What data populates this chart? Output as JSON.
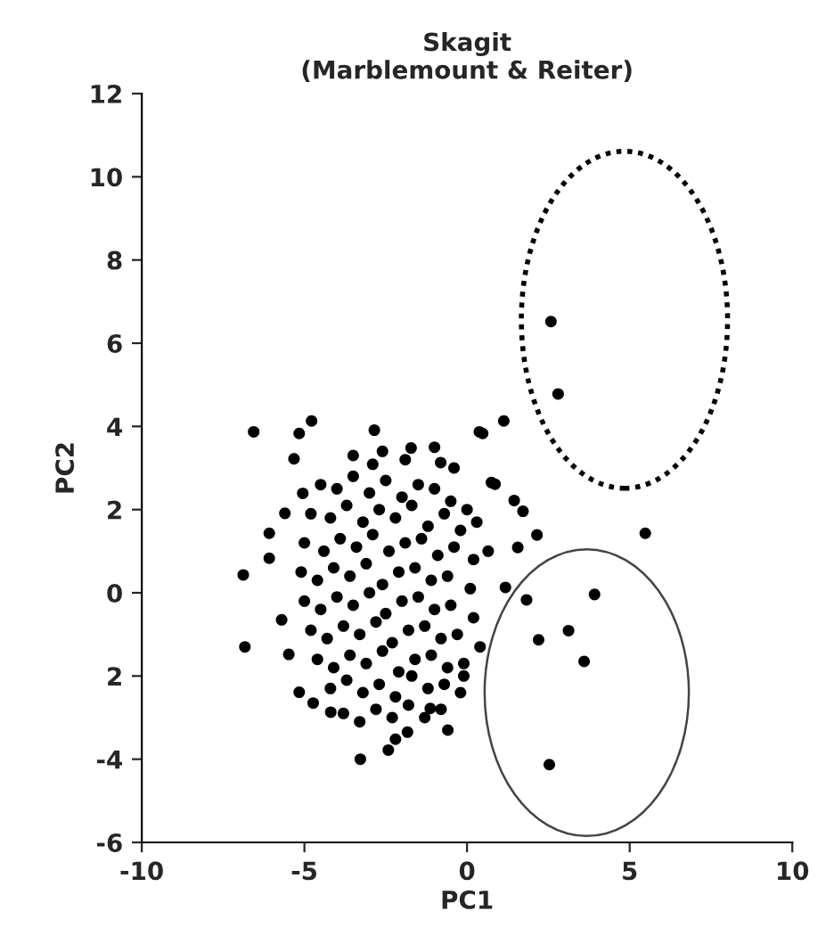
{
  "chart_data": {
    "type": "scatter",
    "title": "Skagit\n(Marblemount & Reiter)",
    "xlabel": "PC1",
    "ylabel": "PC2",
    "color": "#000000",
    "marker": "circle",
    "grid": false,
    "legend": false,
    "xlim": [
      -10,
      10
    ],
    "xticks": [
      -10,
      -5,
      0,
      5,
      10
    ],
    "ylim": [
      -6,
      12
    ],
    "yticks": [
      -6,
      -4,
      {
        "value": -2,
        "label": "2"
      },
      0,
      2,
      4,
      6,
      8,
      10,
      12
    ],
    "x": [
      2.58,
      2.8,
      1.13,
      0.38,
      5.48,
      3.92,
      3.12,
      2.2,
      3.6,
      2.53,
      1.56,
      2.15,
      1.45,
      1.72,
      0.86,
      0.65,
      1.83,
      1.18,
      -6.56,
      -4.78,
      -5.16,
      -2.85,
      -1.72,
      -5.32,
      -2.9,
      -0.81,
      -6.88,
      -6.83,
      -6.08,
      -6.08,
      -5.6,
      -5.05,
      -5.7,
      -5.48,
      -5.16,
      -4.73,
      -4.19,
      -3.28,
      -2.42,
      -2.2,
      -1.83,
      -0.59,
      -1.13,
      0.75,
      0.48,
      -0.1,
      -4.5,
      -4.0,
      -3.5,
      -3.0,
      -2.5,
      -2.0,
      -1.5,
      -1.0,
      -0.5,
      0.0,
      -4.8,
      -4.2,
      -3.7,
      -3.2,
      -2.7,
      -2.2,
      -1.7,
      -1.2,
      -0.7,
      -0.2,
      0.3,
      -5.0,
      -4.4,
      -3.9,
      -3.4,
      -2.9,
      -2.4,
      -1.9,
      -1.4,
      -0.9,
      -0.4,
      0.2,
      -5.1,
      -4.6,
      -4.1,
      -3.6,
      -3.1,
      -2.6,
      -2.1,
      -1.6,
      -1.1,
      -0.6,
      0.1,
      -5.0,
      -4.5,
      -4.0,
      -3.5,
      -3.0,
      -2.5,
      -2.0,
      -1.5,
      -1.0,
      -0.5,
      0.2,
      -4.8,
      -4.3,
      -3.8,
      -3.3,
      -2.8,
      -2.3,
      -1.8,
      -1.3,
      -0.8,
      -0.3,
      0.4,
      -4.6,
      -4.1,
      -3.6,
      -3.1,
      -2.6,
      -2.1,
      -1.6,
      -1.1,
      -0.6,
      -0.1,
      -4.2,
      -3.7,
      -3.2,
      -2.7,
      -2.2,
      -1.7,
      -1.2,
      -0.7,
      -0.2,
      -3.8,
      -3.3,
      -2.8,
      -2.3,
      -1.8,
      -1.3,
      -0.8,
      -3.5,
      -2.6,
      -1.9,
      -1.0,
      -0.4
    ],
    "values": [
      6.52,
      4.78,
      4.13,
      3.87,
      1.43,
      -0.04,
      -0.91,
      -1.13,
      -1.65,
      -4.13,
      1.09,
      1.39,
      2.22,
      1.96,
      2.61,
      1.0,
      -0.17,
      0.13,
      3.87,
      4.13,
      3.83,
      3.91,
      3.48,
      3.22,
      3.09,
      3.13,
      0.43,
      -1.3,
      1.43,
      0.83,
      1.91,
      2.39,
      -0.65,
      -1.48,
      -2.39,
      -2.65,
      -2.87,
      -4.0,
      -3.78,
      -3.52,
      -3.35,
      -3.3,
      -2.78,
      2.65,
      3.83,
      -2.0,
      2.6,
      2.5,
      2.8,
      2.4,
      2.7,
      2.3,
      2.6,
      2.5,
      2.2,
      2.0,
      1.9,
      1.8,
      2.1,
      1.7,
      2.0,
      1.8,
      2.1,
      1.6,
      1.9,
      1.5,
      1.7,
      1.2,
      1.0,
      1.3,
      1.1,
      1.4,
      1.0,
      1.2,
      1.3,
      0.9,
      1.1,
      0.8,
      0.5,
      0.3,
      0.6,
      0.4,
      0.7,
      0.2,
      0.5,
      0.6,
      0.3,
      0.4,
      0.1,
      -0.2,
      -0.4,
      -0.1,
      -0.3,
      0.0,
      -0.5,
      -0.2,
      -0.1,
      -0.4,
      -0.3,
      -0.6,
      -0.9,
      -1.1,
      -0.8,
      -1.0,
      -0.7,
      -1.2,
      -0.9,
      -0.8,
      -1.1,
      -1.0,
      -1.3,
      -1.6,
      -1.8,
      -1.5,
      -1.7,
      -1.4,
      -1.9,
      -1.6,
      -1.5,
      -1.8,
      -1.7,
      -2.3,
      -2.1,
      -2.4,
      -2.2,
      -2.5,
      -2.0,
      -2.3,
      -2.2,
      -2.4,
      -2.9,
      -3.1,
      -2.8,
      -3.0,
      -2.7,
      -3.0,
      -2.8,
      3.3,
      3.4,
      3.2,
      3.5,
      3.0
    ]
  }
}
